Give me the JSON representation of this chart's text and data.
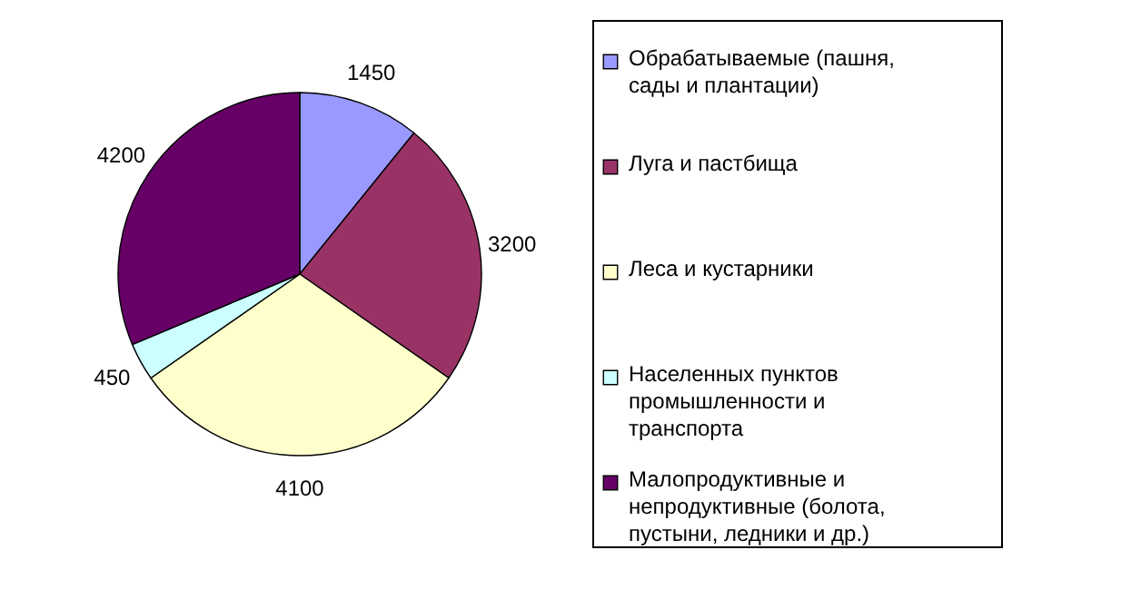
{
  "chart_data": {
    "type": "pie",
    "categories": [
      "Обрабатываемые (пашня, сады и плантации)",
      "Луга и пастбища",
      "Леса и кустарники",
      "Населенных пунктов промышленности и транспорта",
      "Малопродуктивные и непродуктивные (болота, пустыни, ледники и др.)"
    ],
    "values": [
      1450,
      3200,
      4100,
      450,
      4200
    ],
    "colors": [
      "#9999ff",
      "#993366",
      "#ffffcc",
      "#ccffff",
      "#660066"
    ],
    "data_labels": true,
    "legend": "right"
  }
}
